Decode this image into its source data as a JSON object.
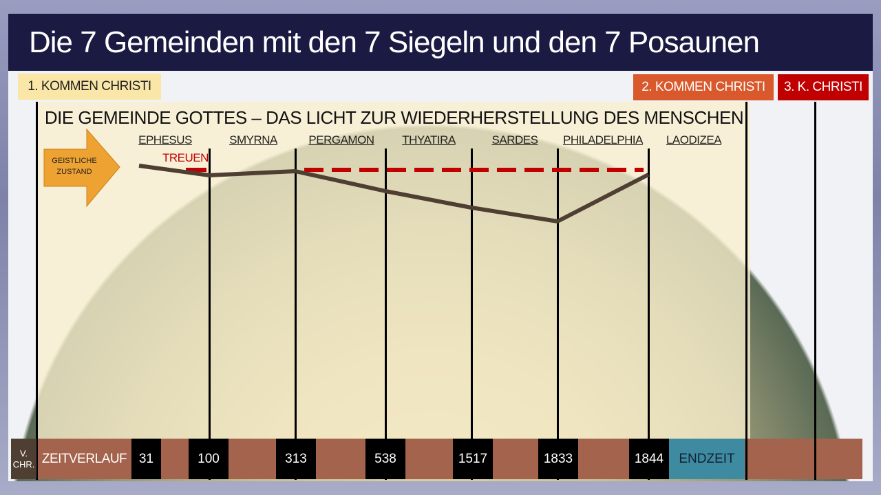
{
  "title": "Die 7 Gemeinden mit den 7 Siegeln und den 7 Posaunen",
  "tags": {
    "first": "1. KOMMEN CHRISTI",
    "second": "2. KOMMEN CHRISTI",
    "third": "3. K. CHRISTI"
  },
  "heading": "DIE GEMEINDE GOTTES – DAS LICHT ZUR WIEDERHERSTELLUNG DES MENSCHEN",
  "arrow_label": "GEISTLICHE ZUSTAND",
  "treuen": "TREUEN",
  "churches": [
    "EPHESUS",
    "SMYRNA",
    "PERGAMON",
    "THYATIRA",
    "SARDES",
    "PHILADELPHIA",
    "LAODIZEA"
  ],
  "timeline": {
    "bc": "V. CHR.",
    "label": "ZEITVERLAUF",
    "years": [
      "31",
      "100",
      "313",
      "538",
      "1517",
      "1833",
      "1844"
    ],
    "end": "ENDZEIT"
  },
  "colors": {
    "title_bg": "#1b1a42",
    "timeline": "#a3634c",
    "endzeit": "#3e8aa0",
    "arrow": "#eda232",
    "treuen": "#c00000",
    "line": "#4f3f33",
    "second_tag": "#d9582c",
    "third_tag": "#c00000",
    "first_tag": "#fae7a8"
  }
}
